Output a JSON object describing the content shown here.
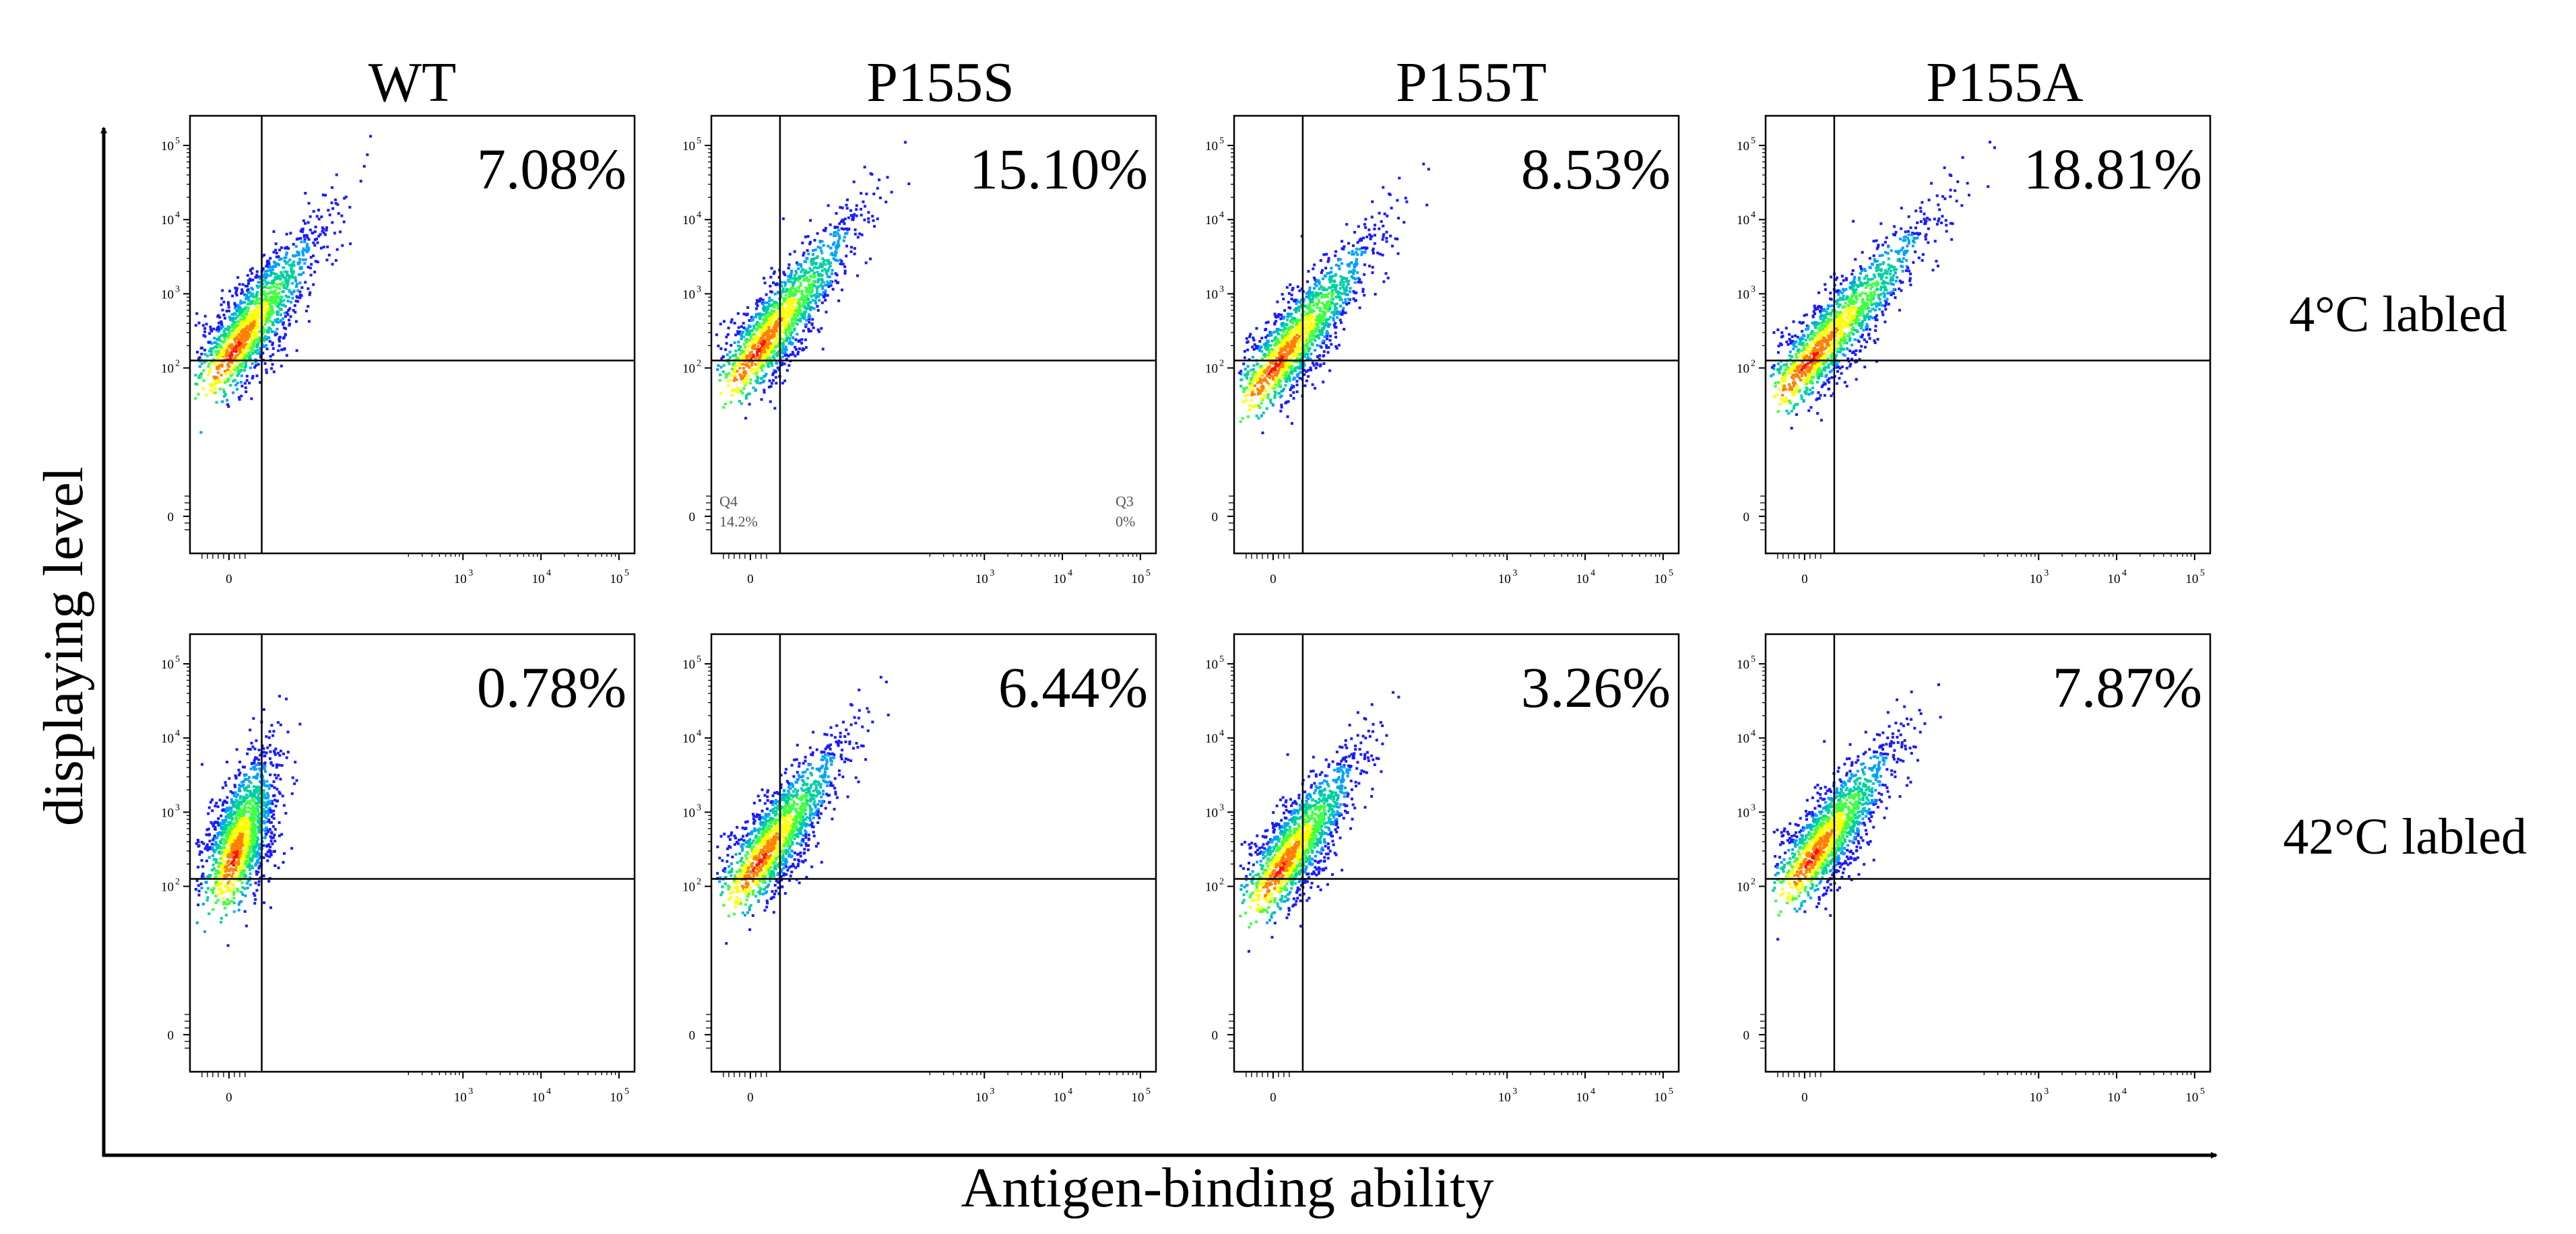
{
  "chart_data": {
    "type": "scatter",
    "subtype": "flow-cytometry-density-grid",
    "xlabel": "Antigen-binding ability",
    "ylabel": "displaying level",
    "columns": [
      "WT",
      "P155S",
      "P155T",
      "P155A"
    ],
    "rows": [
      "4°C labled",
      "42°C labled"
    ],
    "x_ticks": [
      "0",
      "10",
      "10",
      "10"
    ],
    "x_tick_exponents": [
      "",
      "3",
      "4",
      "5"
    ],
    "y_ticks": [
      "10",
      "10",
      "10",
      "10",
      "0"
    ],
    "y_tick_exponents": [
      "5",
      "4",
      "3",
      "2",
      ""
    ],
    "xlim_decades": [
      -0.5,
      5.2
    ],
    "ylim_decades": [
      -0.5,
      5.4
    ],
    "q2_percent": [
      [
        "7.08%",
        "15.10%",
        "8.53%",
        "18.81%"
      ],
      [
        "0.78%",
        "6.44%",
        "3.26%",
        "7.87%"
      ]
    ],
    "gates_decades": [
      [
        {
          "x": 0.42,
          "y": 2.1
        },
        {
          "x": 0.38,
          "y": 2.1
        },
        {
          "x": 0.38,
          "y": 2.1
        },
        {
          "x": 0.38,
          "y": 2.1
        }
      ],
      [
        {
          "x": 0.42,
          "y": 2.1
        },
        {
          "x": 0.38,
          "y": 2.1
        },
        {
          "x": 0.38,
          "y": 2.1
        },
        {
          "x": 0.38,
          "y": 2.1
        }
      ]
    ],
    "populations": [
      [
        {
          "cx": 0.05,
          "cy": 2.25,
          "slope": 1.55,
          "len": 2.0
        },
        {
          "cx": 0.08,
          "cy": 2.25,
          "slope": 1.45,
          "len": 2.25
        },
        {
          "cx": 0.02,
          "cy": 2.05,
          "slope": 1.4,
          "len": 2.2
        },
        {
          "cx": 0.04,
          "cy": 2.1,
          "slope": 1.25,
          "len": 2.5
        }
      ],
      [
        {
          "cx": 0.05,
          "cy": 2.4,
          "slope": 3.5,
          "len": 1.5
        },
        {
          "cx": 0.1,
          "cy": 2.35,
          "slope": 1.55,
          "len": 1.95
        },
        {
          "cx": 0.08,
          "cy": 2.25,
          "slope": 1.6,
          "len": 1.85
        },
        {
          "cx": 0.08,
          "cy": 2.4,
          "slope": 1.5,
          "len": 1.9
        }
      ]
    ],
    "quadrant_annotations": {
      "panel": "P155S 4°C labled",
      "q4_name": "Q4",
      "q4_value": "14.2%",
      "q3_name": "Q3",
      "q3_value": "0%"
    }
  }
}
